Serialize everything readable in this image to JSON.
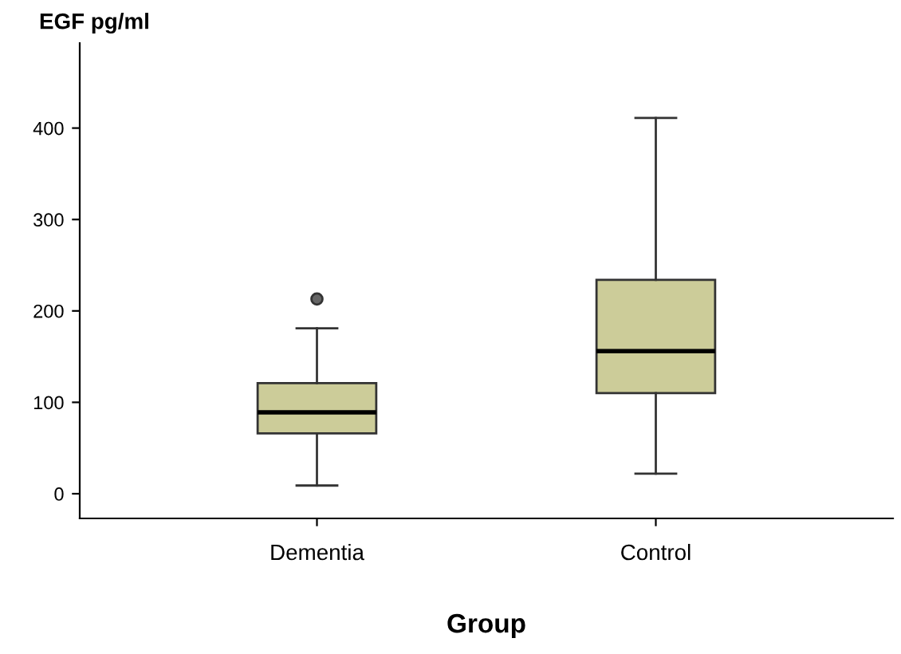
{
  "chart_data": {
    "type": "box",
    "ylabel": "EGF pg/ml",
    "xlabel": "Group",
    "categories": [
      "Dementia",
      "Control"
    ],
    "boxes": [
      {
        "low": 9,
        "q1": 66,
        "median": 89,
        "q3": 121,
        "high": 181,
        "outliers": [
          213
        ]
      },
      {
        "low": 22,
        "q1": 110,
        "median": 156,
        "q3": 234,
        "high": 411
      }
    ],
    "color": "#cccc99",
    "ylim": [
      -27,
      493
    ],
    "yticks": [
      0,
      100,
      200,
      300,
      400
    ],
    "grid": false
  }
}
